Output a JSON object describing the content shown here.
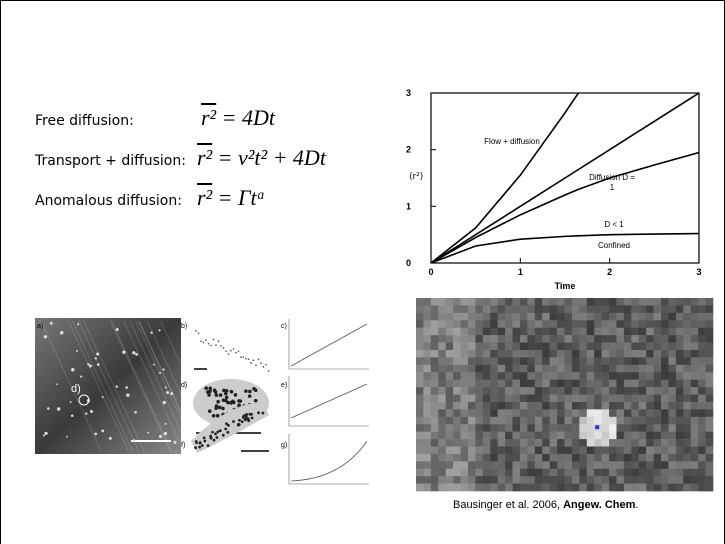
{
  "equations": [
    {
      "label": "Free diffusion:",
      "lhs": "r²",
      "rhs": "= 4Dt"
    },
    {
      "label": "Transport + diffusion:",
      "lhs": "r²",
      "rhs": "= v²t² + 4Dt"
    },
    {
      "label": "Anomalous diffusion:",
      "lhs": "r²",
      "rhs": "= Γtᵅ"
    }
  ],
  "figure_panels": [
    "a)",
    "b)",
    "c)",
    "d)",
    "e)",
    "f)",
    "g)"
  ],
  "micrograph_labels": [
    "b)",
    "f)",
    "d)"
  ],
  "chart_data": {
    "type": "line",
    "x": [
      0,
      0.5,
      1,
      1.5,
      1.65,
      2,
      2.5,
      3
    ],
    "series": [
      {
        "name": "Flow + diffusion",
        "color": "#000000",
        "values": [
          0,
          0.62,
          1.55,
          2.65,
          3,
          null,
          null,
          null
        ]
      },
      {
        "name": "Diffusion D = 1",
        "color": "#000000",
        "values": [
          0,
          0.5,
          1,
          1.5,
          1.65,
          2,
          2.5,
          3
        ]
      },
      {
        "name": "D < 1",
        "color": "#000000",
        "values": [
          0,
          0.45,
          0.85,
          1.2,
          1.3,
          1.5,
          1.73,
          1.95
        ]
      },
      {
        "name": "Confined",
        "color": "#000000",
        "values": [
          0,
          0.3,
          0.42,
          0.47,
          0.48,
          0.5,
          0.51,
          0.52
        ]
      }
    ],
    "xlim": [
      0,
      3
    ],
    "ylim": [
      0,
      3
    ],
    "xticks": [
      0,
      1,
      2,
      3
    ],
    "yticks": [
      0,
      1,
      2,
      3
    ],
    "xlabel": "Time",
    "ylabel": "⟨r²⟩"
  },
  "citation": {
    "text": "Bausinger et al. 2006, ",
    "bold": "Angew. Chem",
    "end": "."
  }
}
